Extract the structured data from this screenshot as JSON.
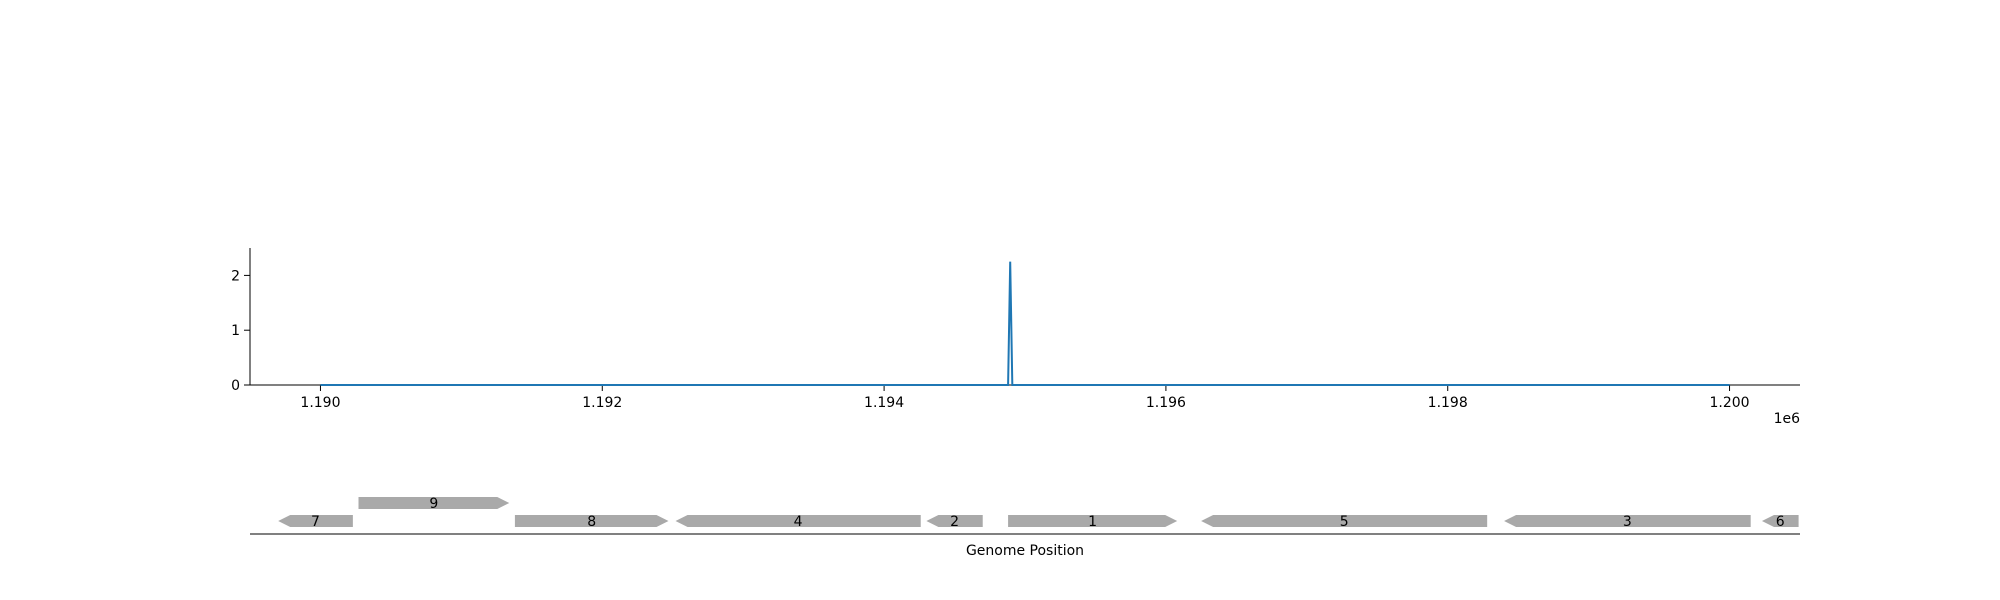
{
  "chart_data": [
    {
      "type": "line",
      "x_axis": {
        "ticks": [
          1190000,
          1192000,
          1194000,
          1196000,
          1198000,
          1200000
        ],
        "tick_labels": [
          "1.190",
          "1.192",
          "1.194",
          "1.196",
          "1.198",
          "1.200"
        ],
        "offset_label": "1e6",
        "xlim": [
          1189500,
          1200500
        ]
      },
      "y_axis": {
        "ticks": [
          0,
          1,
          2
        ],
        "tick_labels": [
          "0",
          "1",
          "2"
        ],
        "ylim": [
          0,
          2.5
        ]
      },
      "series": [
        {
          "color": "#1f77b4",
          "points": [
            [
              1190000,
              0
            ],
            [
              1194880,
              0
            ],
            [
              1194895,
              2.25
            ],
            [
              1194910,
              0
            ],
            [
              1200000,
              0
            ]
          ]
        }
      ],
      "grid": false,
      "legend": "none"
    },
    {
      "type": "gene_track",
      "xlabel": "Genome Position",
      "xlim": [
        1189500,
        1200500
      ],
      "gene_color": "#a9a9a9",
      "genes": [
        {
          "label": "7",
          "start": 1189700,
          "end": 1190230,
          "strand": "-",
          "row": 0
        },
        {
          "label": "9",
          "start": 1190270,
          "end": 1191340,
          "strand": "+",
          "row": 1
        },
        {
          "label": "8",
          "start": 1191380,
          "end": 1192470,
          "strand": "+",
          "row": 0
        },
        {
          "label": "4",
          "start": 1192520,
          "end": 1194260,
          "strand": "-",
          "row": 0
        },
        {
          "label": "2",
          "start": 1194300,
          "end": 1194700,
          "strand": "-",
          "row": 0
        },
        {
          "label": "1",
          "start": 1194880,
          "end": 1196080,
          "strand": "+",
          "row": 0
        },
        {
          "label": "5",
          "start": 1196250,
          "end": 1198280,
          "strand": "-",
          "row": 0
        },
        {
          "label": "3",
          "start": 1198400,
          "end": 1200150,
          "strand": "-",
          "row": 0
        },
        {
          "label": "6",
          "start": 1200230,
          "end": 1200490,
          "strand": "-",
          "row": 0
        }
      ]
    }
  ]
}
